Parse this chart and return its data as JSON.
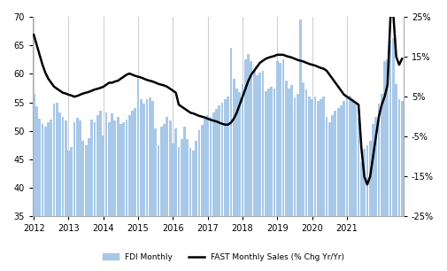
{
  "bar_color": "#a8c8e8",
  "line_color": "#000000",
  "bar_label": "FDI Monthly",
  "line_label": "FAST Monthly Sales (% Chg Yr/Yr)",
  "ylim_left": [
    35,
    70
  ],
  "ylim_right": [
    -25,
    25
  ],
  "yticks_left": [
    35,
    40,
    45,
    50,
    55,
    60,
    65,
    70
  ],
  "yticks_right": [
    -25,
    -15,
    -5,
    5,
    15,
    25
  ],
  "ytick_labels_right": [
    "-25%",
    "-15%",
    "-5%",
    "5%",
    "15%",
    "25%"
  ],
  "bar_width": 0.85,
  "fdi_monthly": [
    56.5,
    54.3,
    52.1,
    51.2,
    50.8,
    51.5,
    52.0,
    54.8,
    55.0,
    53.2,
    52.5,
    51.8,
    46.5,
    47.2,
    51.5,
    52.3,
    51.8,
    48.2,
    47.5,
    48.8,
    52.0,
    51.5,
    52.8,
    53.5,
    49.2,
    53.2,
    51.5,
    53.0,
    51.8,
    52.5,
    51.2,
    51.5,
    52.0,
    52.8,
    53.5,
    54.0,
    59.2,
    55.5,
    54.8,
    55.5,
    55.8,
    55.2,
    50.5,
    47.5,
    50.8,
    51.2,
    52.5,
    51.8,
    47.8,
    50.5,
    47.2,
    48.5,
    50.8,
    48.5,
    47.0,
    46.5,
    48.2,
    50.2,
    51.0,
    52.5,
    52.8,
    52.5,
    53.2,
    53.8,
    54.5,
    55.0,
    55.5,
    56.0,
    64.5,
    59.2,
    57.5,
    56.8,
    58.2,
    62.5,
    63.5,
    62.2,
    60.5,
    59.8,
    60.2,
    60.5,
    57.0,
    57.5,
    57.8,
    57.5,
    62.2,
    62.0,
    62.5,
    58.8,
    57.5,
    58.0,
    55.8,
    56.5,
    69.5,
    58.5,
    57.2,
    56.0,
    55.5,
    56.0,
    55.2,
    55.5,
    56.0,
    52.5,
    51.5,
    52.8,
    53.5,
    54.0,
    54.5,
    55.2,
    55.8,
    56.2,
    55.5,
    54.8,
    52.5,
    44.5,
    46.8,
    47.5,
    48.2,
    51.2,
    52.5,
    54.8,
    56.5,
    62.2,
    62.5,
    65.8,
    66.2,
    58.2,
    55.5,
    55.2
  ],
  "fast_sales_pct": [
    20.5,
    18.0,
    15.5,
    13.0,
    11.0,
    9.5,
    8.5,
    7.5,
    7.0,
    6.5,
    6.0,
    5.8,
    5.5,
    5.3,
    5.0,
    5.2,
    5.5,
    5.8,
    6.0,
    6.2,
    6.5,
    6.8,
    7.0,
    7.2,
    7.5,
    8.0,
    8.5,
    8.5,
    8.8,
    9.0,
    9.5,
    10.0,
    10.5,
    10.8,
    10.5,
    10.2,
    10.0,
    9.8,
    9.5,
    9.2,
    9.0,
    8.8,
    8.5,
    8.2,
    8.0,
    7.8,
    7.5,
    7.0,
    6.5,
    6.0,
    3.0,
    2.5,
    2.0,
    1.5,
    1.0,
    0.8,
    0.5,
    0.2,
    0.0,
    -0.2,
    -0.5,
    -0.8,
    -1.0,
    -1.2,
    -1.5,
    -1.8,
    -2.0,
    -2.0,
    -1.5,
    -0.5,
    1.0,
    3.0,
    5.0,
    7.0,
    9.0,
    10.5,
    11.5,
    12.5,
    13.5,
    14.0,
    14.5,
    14.8,
    15.0,
    15.2,
    15.5,
    15.5,
    15.5,
    15.2,
    15.0,
    14.8,
    14.5,
    14.2,
    14.0,
    13.8,
    13.5,
    13.2,
    13.0,
    12.8,
    12.5,
    12.2,
    12.0,
    11.5,
    10.5,
    9.5,
    8.5,
    7.5,
    6.5,
    5.5,
    5.0,
    4.5,
    4.0,
    3.5,
    3.0,
    -8.0,
    -15.0,
    -17.0,
    -15.0,
    -10.0,
    -5.0,
    0.0,
    3.0,
    5.0,
    8.0,
    25.0,
    25.5,
    15.0,
    13.0,
    14.5
  ],
  "xticklabels": [
    "2012",
    "2013",
    "2014",
    "2015",
    "2016",
    "2017",
    "2018",
    "2019",
    "2020",
    "2021"
  ],
  "xtick_positions_months": [
    0,
    12,
    24,
    36,
    48,
    60,
    72,
    84,
    96,
    108
  ]
}
